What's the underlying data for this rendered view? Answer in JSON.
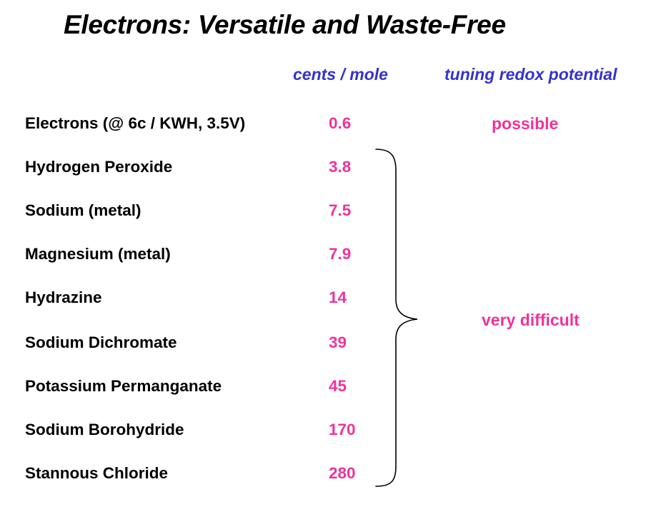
{
  "title": "Electrons: Versatile and Waste-Free",
  "headers": {
    "cost": "cents / mole",
    "tuning": "tuning redox potential"
  },
  "rows": [
    {
      "name": "Electrons (@ 6c / KWH, 3.5V)",
      "cost": "0.6"
    },
    {
      "name": "Hydrogen Peroxide",
      "cost": "3.8"
    },
    {
      "name": "Sodium (metal)",
      "cost": "7.5"
    },
    {
      "name": "Magnesium (metal)",
      "cost": "7.9"
    },
    {
      "name": "Hydrazine",
      "cost": "14"
    },
    {
      "name": "Sodium Dichromate",
      "cost": "39"
    },
    {
      "name": "Potassium Permanganate",
      "cost": "45"
    },
    {
      "name": "Sodium Borohydride",
      "cost": "170"
    },
    {
      "name": "Stannous Chloride",
      "cost": "280"
    }
  ],
  "notes": {
    "electrons": "possible",
    "reagents": "very difficult"
  },
  "colors": {
    "header": "#3333cc",
    "value": "#ee3399",
    "text": "#000000"
  }
}
